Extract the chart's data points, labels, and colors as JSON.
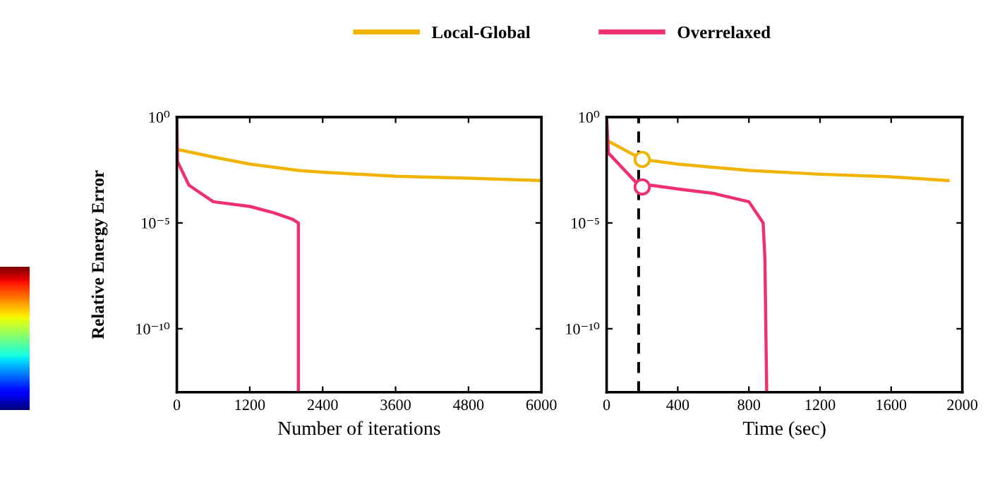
{
  "chart_data": [
    {
      "type": "line",
      "xlabel": "Number of iterations",
      "ylabel": "Relative Energy Error",
      "log": "y",
      "legend": "top",
      "xlim": [
        0,
        6000
      ],
      "xticks": [
        0,
        1200,
        2400,
        3600,
        4800,
        6000
      ],
      "ylim": [
        1e-13,
        1
      ],
      "yticks": [
        {
          "value": 1,
          "label": "10⁰"
        },
        {
          "value": 1e-05,
          "label": "10⁻⁵"
        },
        {
          "value": 1e-10,
          "label": "10⁻¹⁰"
        }
      ],
      "series": [
        {
          "name": "Local-Global",
          "color": "#f0b400",
          "x": [
            0,
            600,
            1200,
            2000,
            2400,
            3600,
            4800,
            6000
          ],
          "values": [
            0.03,
            0.013,
            0.006,
            0.003,
            0.0025,
            0.0016,
            0.0013,
            0.001
          ]
        },
        {
          "name": "Overrelaxed",
          "color": "#f0306e",
          "x": [
            0,
            10,
            200,
            600,
            1200,
            1600,
            1900,
            2000,
            2000
          ],
          "values": [
            1,
            0.008,
            0.0006,
            0.0001,
            6e-05,
            3e-05,
            1.5e-05,
            1e-05,
            1e-13
          ]
        }
      ]
    },
    {
      "type": "line",
      "xlabel": "Time (sec)",
      "log": "y",
      "xlim": [
        0,
        2000
      ],
      "xticks": [
        0,
        400,
        800,
        1200,
        1600,
        2000
      ],
      "ylim": [
        1e-13,
        1
      ],
      "yticks": [
        {
          "value": 1,
          "label": "10⁰"
        },
        {
          "value": 1e-05,
          "label": "10⁻⁵"
        },
        {
          "value": 1e-10,
          "label": "10⁻¹⁰"
        }
      ],
      "ref_lines": [
        {
          "axis": "x",
          "value": 180,
          "color": "#000000",
          "line_style": "dashed"
        }
      ],
      "series": [
        {
          "color": "#f0b400",
          "x": [
            0,
            200,
            400,
            800,
            1200,
            1600,
            1920
          ],
          "values": [
            0.08,
            0.01,
            0.006,
            0.003,
            0.002,
            0.0015,
            0.001
          ]
        },
        {
          "color": "#f0306e",
          "x": [
            0,
            10,
            200,
            250,
            400,
            600,
            800,
            880,
            890,
            900
          ],
          "values": [
            1,
            0.02,
            0.0004,
            0.0006,
            0.0004,
            0.00025,
            0.0001,
            1e-05,
            2e-07,
            1e-13
          ]
        },
        {
          "type": "scatter",
          "marker": "circle",
          "color": "#f0b400",
          "x": [
            200
          ],
          "values": [
            0.01
          ]
        },
        {
          "type": "scatter",
          "marker": "circle",
          "color": "#f0306e",
          "x": [
            200
          ],
          "values": [
            0.0005
          ]
        }
      ]
    }
  ]
}
